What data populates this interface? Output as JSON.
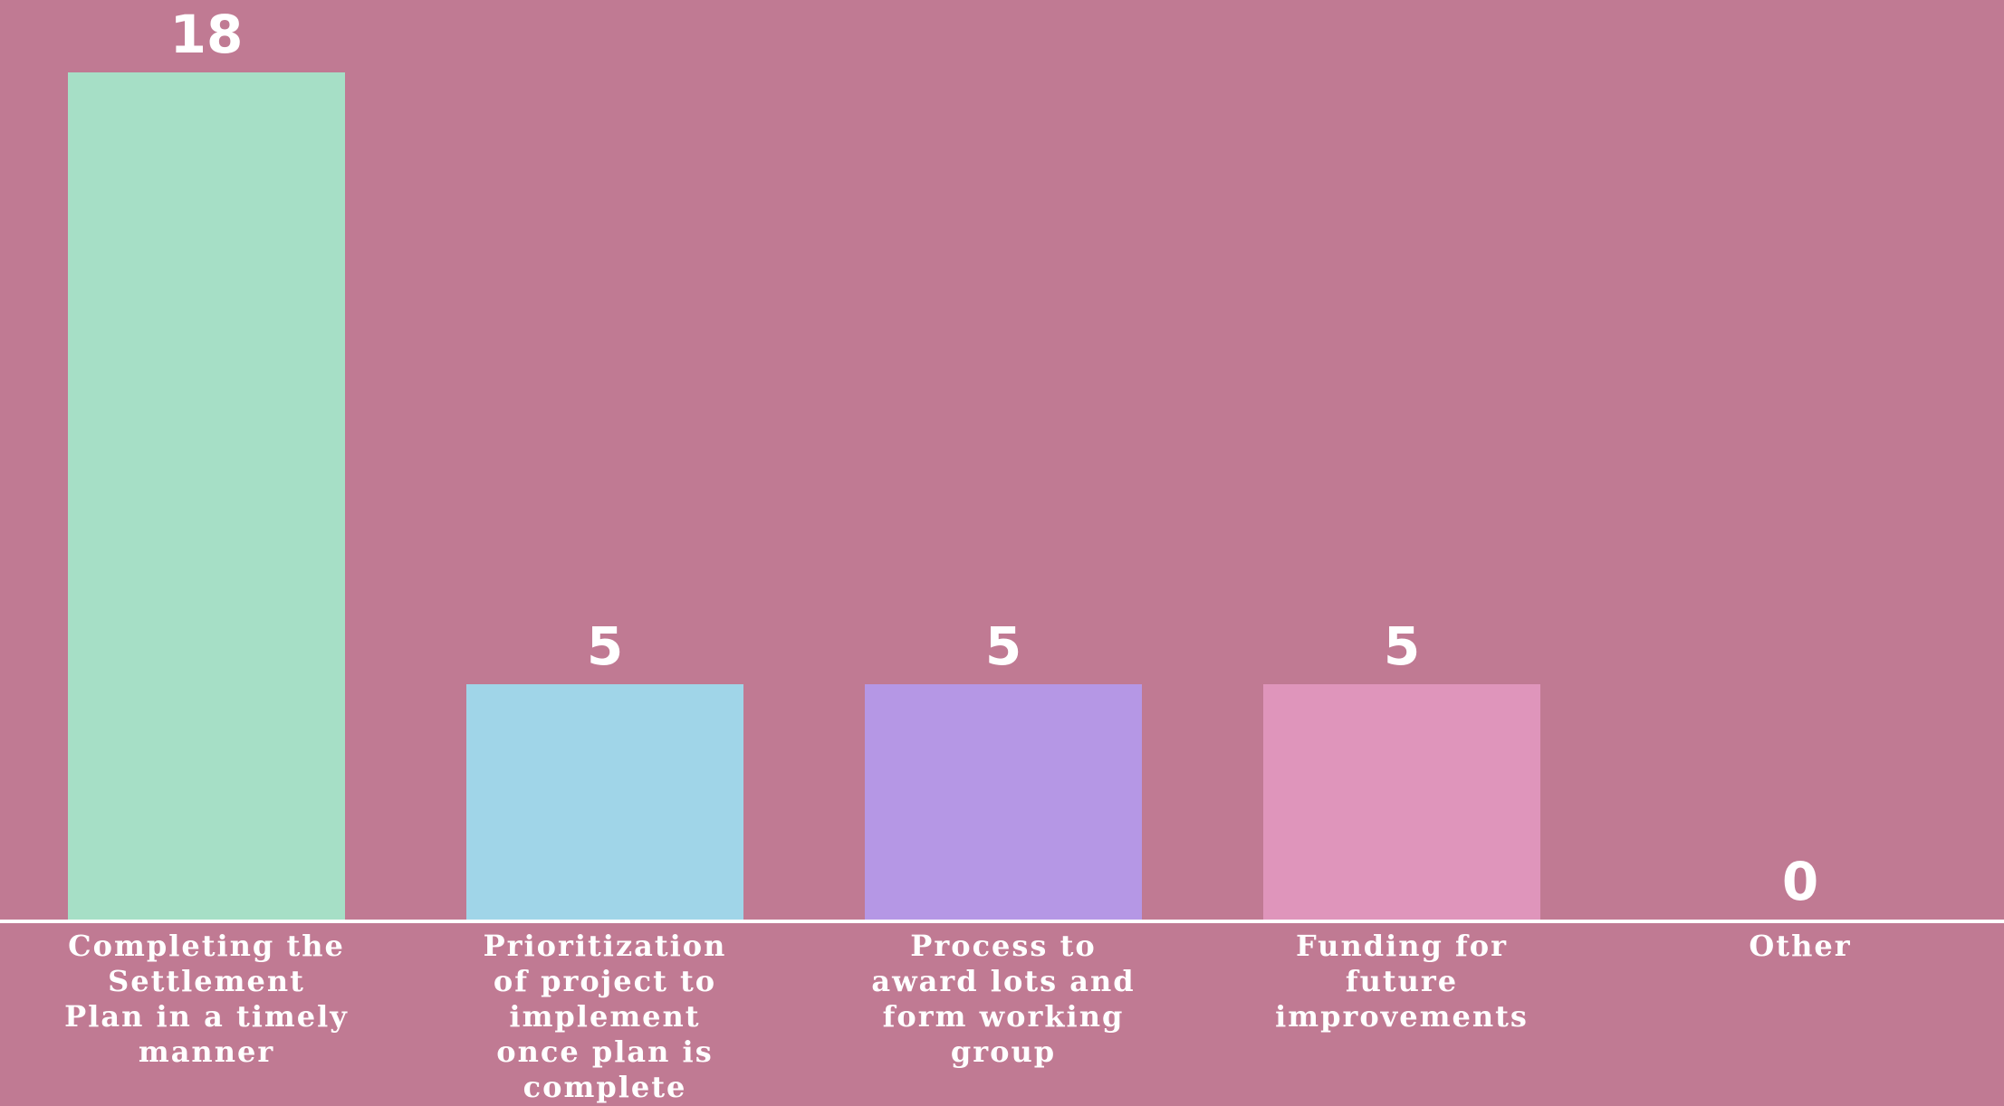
{
  "chart_data": {
    "type": "bar",
    "title": "",
    "xlabel": "",
    "ylabel": "",
    "ylim": [
      0,
      18
    ],
    "grid": false,
    "legend": "none",
    "categories": [
      "Completing the Settlement Plan in a timely manner",
      "Prioritization of project to implement once plan is complete",
      "Process to award lots and form working group",
      "Funding for future improvements",
      "Other"
    ],
    "category_lines": [
      [
        "Completing the",
        "Settlement",
        "Plan in a timely",
        "manner"
      ],
      [
        "Prioritization",
        "of project to",
        "implement",
        "once plan is",
        "complete"
      ],
      [
        "Process to",
        "award lots and",
        "form working",
        "group"
      ],
      [
        "Funding for",
        "future",
        "improvements"
      ],
      [
        "Other"
      ]
    ],
    "values": [
      18,
      5,
      5,
      5,
      0
    ],
    "value_labels": [
      "18",
      "5",
      "5",
      "5",
      "0"
    ],
    "colors": [
      "#a6dfc6",
      "#a0d5e8",
      "#b597e5",
      "#df95bb",
      "#df95bb"
    ],
    "background": "#c07a93",
    "axis_color": "#ffffff"
  }
}
